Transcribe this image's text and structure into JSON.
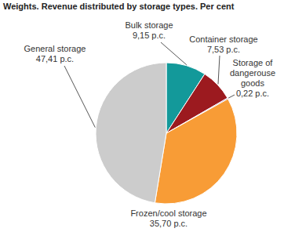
{
  "chart_data": {
    "type": "pie",
    "title": "Weights. Revenue distributed by storage types. Per cent",
    "categories": [
      "Bulk storage",
      "Container storage",
      "Storage of dangerouse goods",
      "Frozen/cool storage",
      "General storage"
    ],
    "values": [
      9.15,
      7.53,
      0.22,
      35.7,
      47.41
    ],
    "value_labels": [
      "9,15 p.c.",
      "7,53 p.c.",
      "0,22 p.c.",
      "35,70 p.c.",
      "47,41 p.c."
    ],
    "colors": [
      "#13999a",
      "#9c1a1f",
      "#5c2d91",
      "#f89c36",
      "#cccccc"
    ],
    "data_labels": true
  }
}
